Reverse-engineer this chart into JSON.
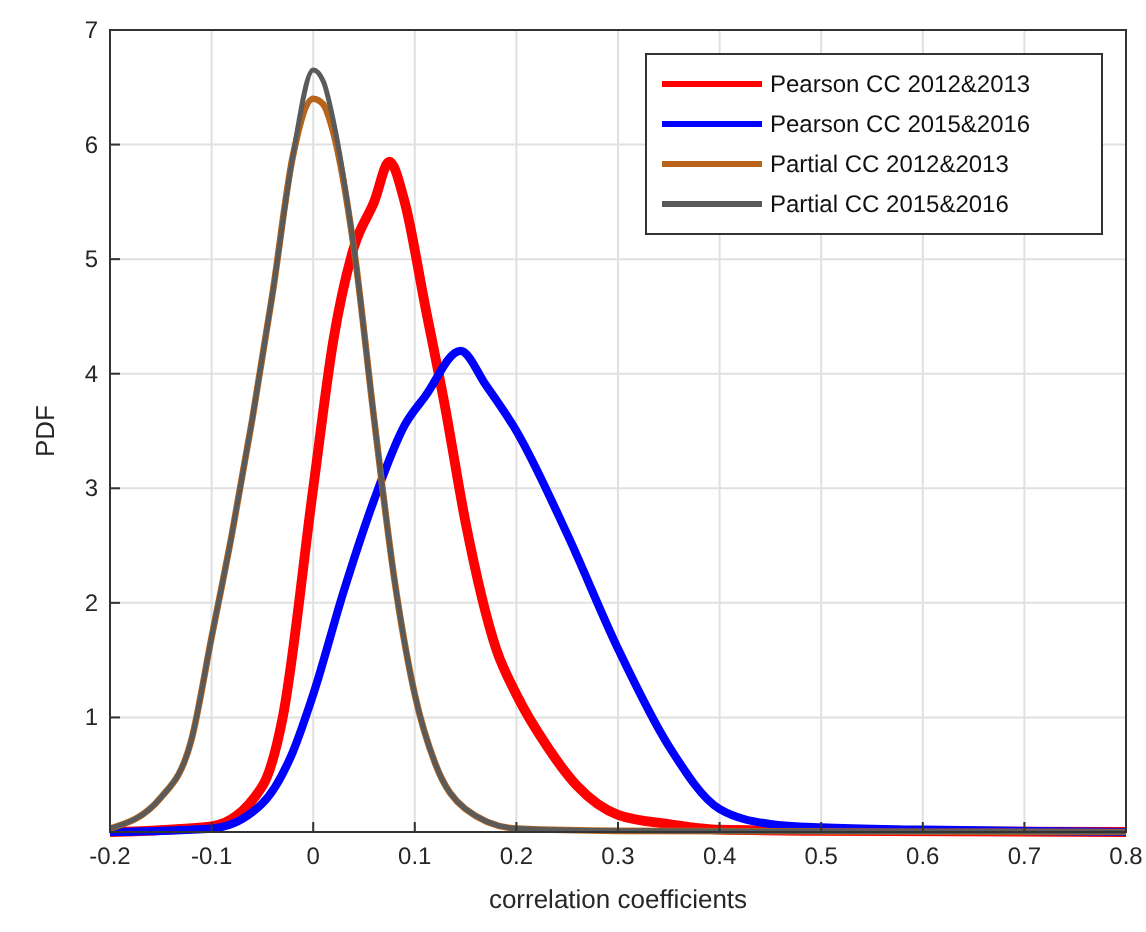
{
  "chart_data": {
    "type": "line",
    "xlabel": "correlation coefficients",
    "ylabel": "PDF",
    "xlim": [
      -0.2,
      0.8
    ],
    "ylim": [
      0,
      7
    ],
    "xticks": [
      -0.2,
      -0.1,
      0,
      0.1,
      0.2,
      0.3,
      0.4,
      0.5,
      0.6,
      0.7,
      0.8
    ],
    "yticks": [
      1,
      2,
      3,
      4,
      5,
      6,
      7
    ],
    "grid": true,
    "legend": "top right",
    "line_style": "solid",
    "series": [
      {
        "name": "Pearson CC 2012&2013",
        "color": "#ff0000",
        "x": [
          -0.2,
          -0.1,
          -0.05,
          -0.03,
          0,
          0.02,
          0.04,
          0.06,
          0.075,
          0.09,
          0.11,
          0.13,
          0.15,
          0.18,
          0.2,
          0.23,
          0.26,
          0.3,
          0.35,
          0.4,
          0.5,
          0.8
        ],
        "values": [
          0,
          0.05,
          0.4,
          1.0,
          3.0,
          4.3,
          5.1,
          5.5,
          5.85,
          5.5,
          4.6,
          3.7,
          2.7,
          1.6,
          1.2,
          0.75,
          0.4,
          0.15,
          0.07,
          0.02,
          0.01,
          0
        ]
      },
      {
        "name": "Pearson CC 2015&2016",
        "color": "#0000ff",
        "x": [
          -0.2,
          -0.1,
          -0.05,
          -0.02,
          0,
          0.03,
          0.06,
          0.09,
          0.11,
          0.145,
          0.17,
          0.2,
          0.25,
          0.3,
          0.35,
          0.4,
          0.45,
          0.5,
          0.6,
          0.8
        ],
        "values": [
          0,
          0.03,
          0.25,
          0.7,
          1.2,
          2.1,
          2.9,
          3.55,
          3.8,
          4.2,
          3.9,
          3.5,
          2.6,
          1.6,
          0.75,
          0.2,
          0.07,
          0.04,
          0.02,
          0
        ]
      },
      {
        "name": "Partial CC 2012&2013",
        "color": "#b8651b",
        "x": [
          -0.2,
          -0.15,
          -0.12,
          -0.1,
          -0.08,
          -0.06,
          -0.04,
          -0.02,
          0,
          0.01,
          0.02,
          0.04,
          0.06,
          0.08,
          0.1,
          0.12,
          0.15,
          0.2,
          0.3,
          0.8
        ],
        "values": [
          0.03,
          0.3,
          0.8,
          1.7,
          2.6,
          3.6,
          4.7,
          5.9,
          6.4,
          6.35,
          6.1,
          5.1,
          3.6,
          2.2,
          1.2,
          0.6,
          0.2,
          0.03,
          0.01,
          0
        ]
      },
      {
        "name": "Partial CC 2015&2016",
        "color": "#5a5a5a",
        "x": [
          -0.2,
          -0.15,
          -0.12,
          -0.1,
          -0.08,
          -0.06,
          -0.04,
          -0.02,
          0,
          0.01,
          0.02,
          0.04,
          0.06,
          0.08,
          0.1,
          0.12,
          0.15,
          0.2,
          0.3,
          0.8
        ],
        "values": [
          0.03,
          0.3,
          0.8,
          1.7,
          2.6,
          3.6,
          4.7,
          5.9,
          6.65,
          6.55,
          6.2,
          5.1,
          3.6,
          2.2,
          1.2,
          0.6,
          0.2,
          0.03,
          0.01,
          0
        ]
      }
    ]
  }
}
